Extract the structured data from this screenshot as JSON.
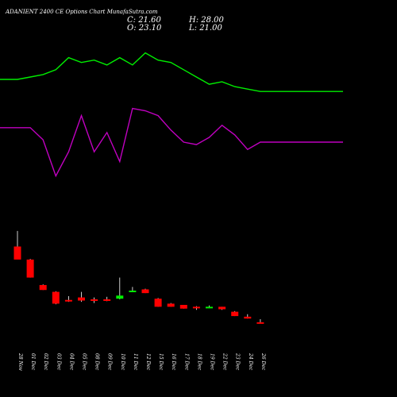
{
  "header": {
    "title": "ADANIENT 2400  CE Options  Chart MunafaSutra.com",
    "close": "C: 21.60",
    "high": "H: 28.00",
    "open": "O: 23.10",
    "low": "L: 21.00"
  },
  "colors": {
    "up": "#00ee00",
    "down": "#ff0000",
    "line_top": "#00ee00",
    "line_bottom": "#c000c0",
    "wick": "#ffffff",
    "text": "#ffffff"
  },
  "chart_data": {
    "type": "candlestick",
    "x": [
      "28 Nov",
      "01 Dec",
      "02 Dec",
      "03 Dec",
      "04 Dec",
      "05 Dec",
      "08 Dec",
      "09 Dec",
      "10 Dec",
      "11 Dec",
      "12 Dec",
      "15 Dec",
      "16 Dec",
      "17 Dec",
      "18 Dec",
      "19 Dec",
      "22 Dec",
      "23 Dec",
      "24 Dec",
      "26 Dec"
    ],
    "candles": [
      {
        "open": 145,
        "high": 170,
        "low": 125,
        "close": 124
      },
      {
        "open": 124,
        "high": 125,
        "low": 95,
        "close": 95
      },
      {
        "open": 83,
        "high": 84,
        "low": 75,
        "close": 75
      },
      {
        "open": 72,
        "high": 73,
        "low": 52,
        "close": 53
      },
      {
        "open": 59,
        "high": 65,
        "low": 56,
        "close": 58
      },
      {
        "open": 63,
        "high": 72,
        "low": 56,
        "close": 58
      },
      {
        "open": 60,
        "high": 63,
        "low": 54,
        "close": 59
      },
      {
        "open": 60,
        "high": 64,
        "low": 57,
        "close": 59
      },
      {
        "open": 61,
        "high": 95,
        "low": 60,
        "close": 66
      },
      {
        "open": 74,
        "high": 80,
        "low": 74,
        "close": 74
      },
      {
        "open": 76,
        "high": 77,
        "low": 70,
        "close": 70
      },
      {
        "open": 61,
        "high": 62,
        "low": 48,
        "close": 48
      },
      {
        "open": 53,
        "high": 54,
        "low": 48,
        "close": 48
      },
      {
        "open": 51,
        "high": 51,
        "low": 45,
        "close": 45
      },
      {
        "open": 48,
        "high": 49,
        "low": 43,
        "close": 46
      },
      {
        "open": 46,
        "high": 50,
        "low": 46,
        "close": 48
      },
      {
        "open": 48,
        "high": 48,
        "low": 43,
        "close": 44
      },
      {
        "open": 40,
        "high": 41,
        "low": 33,
        "close": 33
      },
      {
        "open": 32,
        "high": 36,
        "low": 29,
        "close": 29
      },
      {
        "open": 23.1,
        "high": 28,
        "low": 21,
        "close": 21.6
      }
    ],
    "line_top": [
      100,
      101,
      102,
      104,
      109,
      107,
      108,
      106,
      109,
      106,
      111,
      108,
      107,
      104,
      101,
      98,
      99,
      97,
      96,
      95
    ],
    "line_bottom": [
      80,
      80,
      75,
      60,
      70,
      85,
      70,
      78,
      66,
      88,
      87,
      85,
      79,
      74,
      73,
      76,
      81,
      77,
      71,
      74
    ]
  }
}
